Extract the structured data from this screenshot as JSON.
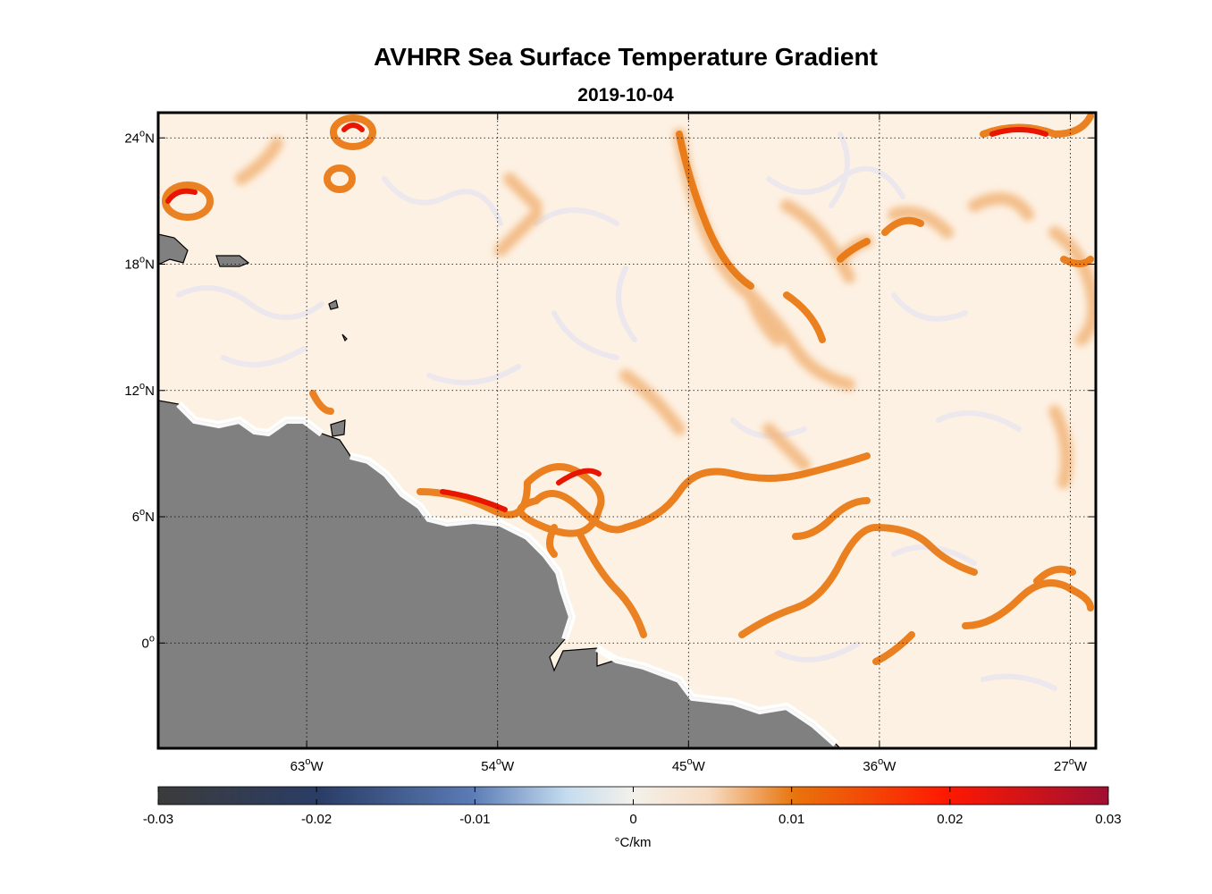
{
  "header": {
    "title": "AVHRR Sea Surface Temperature Gradient",
    "date": "2019-10-04"
  },
  "map": {
    "region": "Western tropical Atlantic",
    "lon_range": [
      -70.0,
      -25.8
    ],
    "lat_range": [
      -5.0,
      25.2
    ],
    "lon_ticks": [
      {
        "value": -63,
        "label": "63",
        "suffix": "W"
      },
      {
        "value": -54,
        "label": "54",
        "suffix": "W"
      },
      {
        "value": -45,
        "label": "45",
        "suffix": "W"
      },
      {
        "value": -36,
        "label": "36",
        "suffix": "W"
      },
      {
        "value": -27,
        "label": "27",
        "suffix": "W"
      }
    ],
    "lat_ticks": [
      {
        "value": 24,
        "label": "24",
        "suffix": "N"
      },
      {
        "value": 18,
        "label": "18",
        "suffix": "N"
      },
      {
        "value": 12,
        "label": "12",
        "suffix": "N"
      },
      {
        "value": 6,
        "label": "6",
        "suffix": "N"
      },
      {
        "value": 0,
        "label": "0",
        "suffix": ""
      }
    ],
    "grid": "dotted",
    "land_color": "#808080",
    "ocean_background": "#fdf1e3"
  },
  "colorbar": {
    "min": -0.03,
    "max": 0.03,
    "tick_labels": [
      "-0.03",
      "-0.02",
      "-0.01",
      "0",
      "0.01",
      "0.02",
      "0.03"
    ],
    "unit": "°C/km",
    "colors": [
      "#3b3b3b",
      "#2a3d66",
      "#4e6fa8",
      "#b8d2ec",
      "#fdf1e3",
      "#e8740c",
      "#ff1500",
      "#9b1030"
    ]
  }
}
